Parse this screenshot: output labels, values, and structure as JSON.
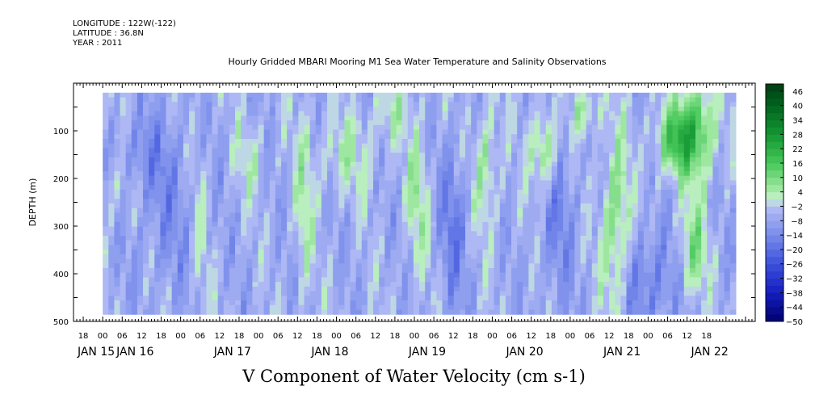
{
  "header": {
    "longitude": "LONGITUDE : 122W(-122)",
    "latitude": "LATITUDE : 36.8N",
    "year": "YEAR : 2011"
  },
  "chart_data": {
    "type": "heatmap",
    "title": "Hourly Gridded MBARI Mooring M1 Sea Water Temperature and Salinity Observations",
    "xlabel": "V Component of Water Velocity (cm s-1)",
    "ylabel": "DEPTH (m)",
    "x_units": "hours since 2011-01-15 00:00",
    "xlim": [
      -9,
      201
    ],
    "data_xlim": [
      0,
      195
    ],
    "ylim": [
      500,
      0
    ],
    "data_ylim": [
      20,
      485
    ],
    "y_ticks": [
      100,
      200,
      300,
      400,
      500
    ],
    "x_hour_ticks": [
      {
        "t": -6,
        "label": "18"
      },
      {
        "t": 0,
        "label": "00"
      },
      {
        "t": 6,
        "label": "06"
      },
      {
        "t": 12,
        "label": "12"
      },
      {
        "t": 18,
        "label": "18"
      },
      {
        "t": 24,
        "label": "00"
      },
      {
        "t": 30,
        "label": "06"
      },
      {
        "t": 36,
        "label": "12"
      },
      {
        "t": 42,
        "label": "18"
      },
      {
        "t": 48,
        "label": "00"
      },
      {
        "t": 54,
        "label": "06"
      },
      {
        "t": 60,
        "label": "12"
      },
      {
        "t": 66,
        "label": "18"
      },
      {
        "t": 72,
        "label": "00"
      },
      {
        "t": 78,
        "label": "06"
      },
      {
        "t": 84,
        "label": "12"
      },
      {
        "t": 90,
        "label": "18"
      },
      {
        "t": 96,
        "label": "00"
      },
      {
        "t": 102,
        "label": "06"
      },
      {
        "t": 108,
        "label": "12"
      },
      {
        "t": 114,
        "label": "18"
      },
      {
        "t": 120,
        "label": "00"
      },
      {
        "t": 126,
        "label": "06"
      },
      {
        "t": 132,
        "label": "12"
      },
      {
        "t": 138,
        "label": "18"
      },
      {
        "t": 144,
        "label": "00"
      },
      {
        "t": 150,
        "label": "06"
      },
      {
        "t": 156,
        "label": "12"
      },
      {
        "t": 162,
        "label": "18"
      },
      {
        "t": 168,
        "label": "00"
      },
      {
        "t": 174,
        "label": "06"
      },
      {
        "t": 180,
        "label": "12"
      },
      {
        "t": 186,
        "label": "18"
      }
    ],
    "x_date_labels": [
      {
        "t": -6,
        "label": "JAN 15"
      },
      {
        "t": 6,
        "label": "JAN 16"
      },
      {
        "t": 36,
        "label": "JAN 17"
      },
      {
        "t": 66,
        "label": "JAN 18"
      },
      {
        "t": 96,
        "label": "JAN 19"
      },
      {
        "t": 126,
        "label": "JAN 20"
      },
      {
        "t": 156,
        "label": "JAN 21"
      },
      {
        "t": 183,
        "label": "JAN 22"
      }
    ],
    "colorbar": {
      "levels": [
        -50,
        -44,
        -38,
        -32,
        -26,
        -20,
        -14,
        -8,
        -2,
        4,
        10,
        16,
        22,
        28,
        34,
        40,
        46
      ],
      "bins": [
        -50,
        -47,
        -44,
        -41,
        -38,
        -35,
        -32,
        -29,
        -26,
        -23,
        -20,
        -17,
        -14,
        -11,
        -8,
        -5,
        -2,
        1,
        4,
        7,
        10,
        13,
        16,
        19,
        22,
        25,
        28,
        31,
        34,
        37,
        40,
        43,
        46,
        49
      ]
    },
    "value_range": [
      -25,
      25
    ],
    "features": [
      {
        "t": 136,
        "d": 140,
        "st": 3,
        "sd": 60,
        "a": 18
      },
      {
        "t": 158,
        "d": 300,
        "st": 3,
        "sd": 140,
        "a": 16
      },
      {
        "t": 176,
        "d": 120,
        "st": 4,
        "sd": 50,
        "a": 20
      },
      {
        "t": 183,
        "d": 100,
        "st": 4,
        "sd": 70,
        "a": 22
      },
      {
        "t": 182,
        "d": 350,
        "st": 3,
        "sd": 70,
        "a": 14
      },
      {
        "t": 118,
        "d": 180,
        "st": 2.5,
        "sd": 90,
        "a": 12
      },
      {
        "t": 97,
        "d": 240,
        "st": 2.5,
        "sd": 110,
        "a": 10
      },
      {
        "t": 62,
        "d": 260,
        "st": 2,
        "sd": 130,
        "a": 9
      },
      {
        "t": 30,
        "d": 300,
        "st": 2,
        "sd": 140,
        "a": 7
      },
      {
        "t": 4,
        "d": 200,
        "st": 4,
        "sd": 60,
        "a": 7
      },
      {
        "t": 75,
        "d": 150,
        "st": 7,
        "sd": 60,
        "a": 8
      },
      {
        "t": 45,
        "d": 160,
        "st": 3,
        "sd": 60,
        "a": 7
      },
      {
        "t": 108,
        "d": 300,
        "st": 3,
        "sd": 120,
        "a": -10
      },
      {
        "t": 140,
        "d": 250,
        "st": 4,
        "sd": 150,
        "a": -8
      },
      {
        "t": 20,
        "d": 250,
        "st": 8,
        "sd": 130,
        "a": -6
      },
      {
        "t": 168,
        "d": 420,
        "st": 6,
        "sd": 80,
        "a": -10
      },
      {
        "t": 10,
        "d": 150,
        "st": 6,
        "sd": 50,
        "a": -7
      },
      {
        "t": 148,
        "d": 60,
        "st": 3,
        "sd": 40,
        "a": 12
      },
      {
        "t": 89,
        "d": 60,
        "st": 4,
        "sd": 40,
        "a": 8
      }
    ]
  }
}
